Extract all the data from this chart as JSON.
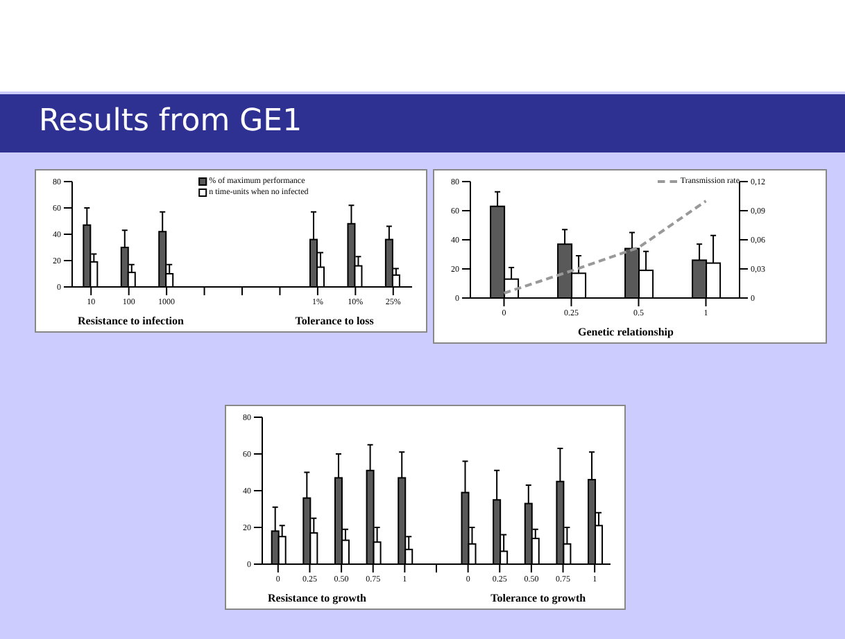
{
  "chart_data": [
    {
      "type": "bar",
      "title": "Results from GE1",
      "categories": [
        "10",
        "100",
        "1000",
        null,
        null,
        null,
        "1%",
        "10%",
        "25%"
      ],
      "series": [
        {
          "name": "% of maximum performance",
          "color": "#595959",
          "values": [
            47,
            30,
            42,
            null,
            null,
            null,
            36,
            48,
            36
          ],
          "errors": [
            [
              47,
              60
            ],
            [
              30,
              43
            ],
            [
              42,
              57
            ],
            null,
            null,
            null,
            [
              36,
              57
            ],
            [
              48,
              62
            ],
            [
              36,
              46
            ]
          ]
        },
        {
          "name": "n time-units when no infected",
          "color": "#ffffff",
          "values": [
            19,
            11,
            10,
            null,
            null,
            null,
            15,
            16,
            9
          ],
          "errors": [
            [
              19,
              25
            ],
            [
              11,
              17
            ],
            [
              10,
              17
            ],
            null,
            null,
            null,
            [
              15,
              26
            ],
            [
              16,
              23
            ],
            [
              9,
              14
            ]
          ]
        }
      ],
      "ylim": [
        0,
        80
      ],
      "yticks": [
        0,
        20,
        40,
        60,
        80
      ],
      "legend": "top",
      "annotations": [
        "Resistance to infection",
        "Tolerance to loss"
      ]
    },
    {
      "type": "bar",
      "categories": [
        "0",
        "0.25",
        "0.5",
        "1"
      ],
      "xlabel": "Genetic relationship",
      "series": [
        {
          "color": "#595959",
          "values": [
            63,
            37,
            34,
            26
          ],
          "errors": [
            [
              63,
              73
            ],
            [
              37,
              47
            ],
            [
              34,
              45
            ],
            [
              26,
              37
            ]
          ]
        },
        {
          "color": "#ffffff",
          "values": [
            13,
            17,
            19,
            24
          ],
          "errors": [
            [
              13,
              21
            ],
            [
              17,
              29
            ],
            [
              19,
              32
            ],
            [
              24,
              43
            ]
          ]
        },
        {
          "type": "line",
          "name": "Transmission rate",
          "color": "#999999",
          "axis": "y2",
          "line_style": "dashed",
          "values": [
            0.005,
            0.028,
            0.052,
            0.1
          ]
        }
      ],
      "ylim": [
        0,
        80
      ],
      "yticks": [
        0,
        20,
        40,
        60,
        80
      ],
      "y2lim": [
        0,
        0.12
      ],
      "y2ticks": [
        {
          "value": 0,
          "label": "0"
        },
        {
          "value": 0.03,
          "label": "0,03"
        },
        {
          "value": 0.06,
          "label": "0,06"
        },
        {
          "value": 0.09,
          "label": "0,09"
        },
        {
          "value": 0.12,
          "label": "0,12"
        }
      ],
      "legend": "top right"
    },
    {
      "type": "bar",
      "categories": [
        "0",
        "0.25",
        "0.50",
        "0.75",
        "1",
        null,
        "0",
        "0.25",
        "0.50",
        "0.75",
        "1"
      ],
      "series": [
        {
          "color": "#595959",
          "values": [
            18,
            36,
            47,
            51,
            47,
            null,
            39,
            35,
            33,
            45,
            46
          ],
          "errors": [
            [
              18,
              31
            ],
            [
              36,
              50
            ],
            [
              47,
              60
            ],
            [
              51,
              65
            ],
            [
              47,
              61
            ],
            null,
            [
              39,
              56
            ],
            [
              35,
              51
            ],
            [
              33,
              43
            ],
            [
              45,
              63
            ],
            [
              46,
              61
            ]
          ]
        },
        {
          "color": "#ffffff",
          "values": [
            15,
            17,
            13,
            12,
            8,
            null,
            11,
            7,
            14,
            11,
            21
          ],
          "errors": [
            [
              15,
              21
            ],
            [
              17,
              25
            ],
            [
              13,
              19
            ],
            [
              12,
              20
            ],
            [
              8,
              15
            ],
            null,
            [
              11,
              20
            ],
            [
              7,
              16
            ],
            [
              14,
              19
            ],
            [
              11,
              20
            ],
            [
              21,
              28
            ]
          ]
        }
      ],
      "ylim": [
        0,
        80
      ],
      "yticks": [
        0,
        20,
        40,
        60,
        80
      ],
      "annotations": [
        "Resistance to growth",
        "Tolerance to growth"
      ]
    }
  ]
}
